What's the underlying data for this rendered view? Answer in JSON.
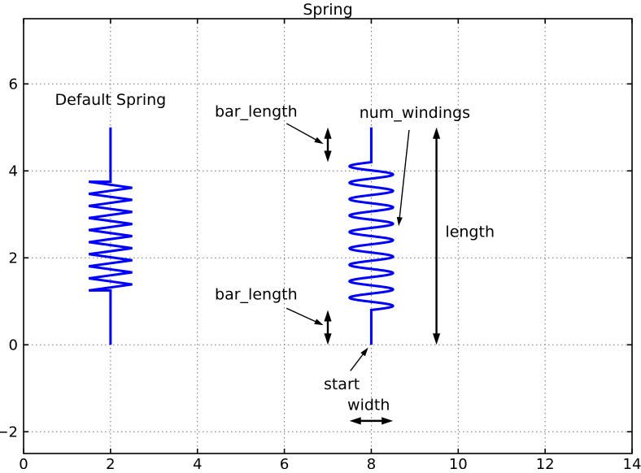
{
  "chart_data": {
    "type": "line",
    "title": "Spring",
    "xlabel": "",
    "ylabel": "",
    "xlim": [
      0,
      14
    ],
    "ylim": [
      -2.5,
      7.5
    ],
    "xticks": [
      0,
      2,
      4,
      6,
      8,
      10,
      12,
      14
    ],
    "yticks": [
      -2,
      0,
      2,
      4,
      6
    ],
    "grid": true,
    "grid_linestyle": "dotted",
    "spring_color": "#0000ff",
    "annotation_color": "#000000",
    "springs": [
      {
        "name": "default-spring",
        "start": [
          2,
          0
        ],
        "length": 5.0,
        "width": 1.0,
        "bar_length": 1.25,
        "num_windings": 9,
        "style": "zigzag"
      },
      {
        "name": "annotated-spring",
        "start": [
          8,
          0
        ],
        "length": 5.0,
        "width": 1.0,
        "bar_length": 0.8,
        "num_windings": 9,
        "style": "sine"
      }
    ],
    "labels": [
      {
        "name": "default-spring-label",
        "text": "Default Spring",
        "x": 2.0,
        "y": 5.64
      },
      {
        "name": "length-label",
        "text": "length",
        "x": 10.27,
        "y": 2.6
      },
      {
        "name": "width-label",
        "text": "width",
        "x": 7.94,
        "y": -1.38
      }
    ],
    "pointer_annotations": [
      {
        "name": "bar-length-top",
        "text": "bar_length",
        "x": 5.35,
        "y": 5.37,
        "arrow": [
          6.05,
          5.09,
          6.9,
          4.62
        ]
      },
      {
        "name": "bar-length-bottom",
        "text": "bar_length",
        "x": 5.35,
        "y": 1.16,
        "arrow": [
          6.05,
          0.84,
          6.9,
          0.45
        ]
      },
      {
        "name": "num-windings",
        "text": "num_windings",
        "x": 9.0,
        "y": 5.34,
        "arrow": [
          8.87,
          4.94,
          8.63,
          2.73
        ]
      },
      {
        "name": "start",
        "text": "start",
        "x": 7.32,
        "y": -0.9,
        "arrow": [
          7.52,
          -0.6,
          7.93,
          -0.06
        ]
      }
    ],
    "dimension_arrows": [
      {
        "name": "bar-length-top-dim",
        "from": [
          7.0,
          4.2
        ],
        "to": [
          7.0,
          5.0
        ]
      },
      {
        "name": "bar-length-bottom-dim",
        "from": [
          7.0,
          0.0
        ],
        "to": [
          7.0,
          0.8
        ]
      },
      {
        "name": "length-dim",
        "from": [
          9.5,
          0.0
        ],
        "to": [
          9.5,
          5.0
        ]
      },
      {
        "name": "width-dim",
        "from": [
          7.5,
          -1.75
        ],
        "to": [
          8.5,
          -1.75
        ]
      }
    ]
  }
}
